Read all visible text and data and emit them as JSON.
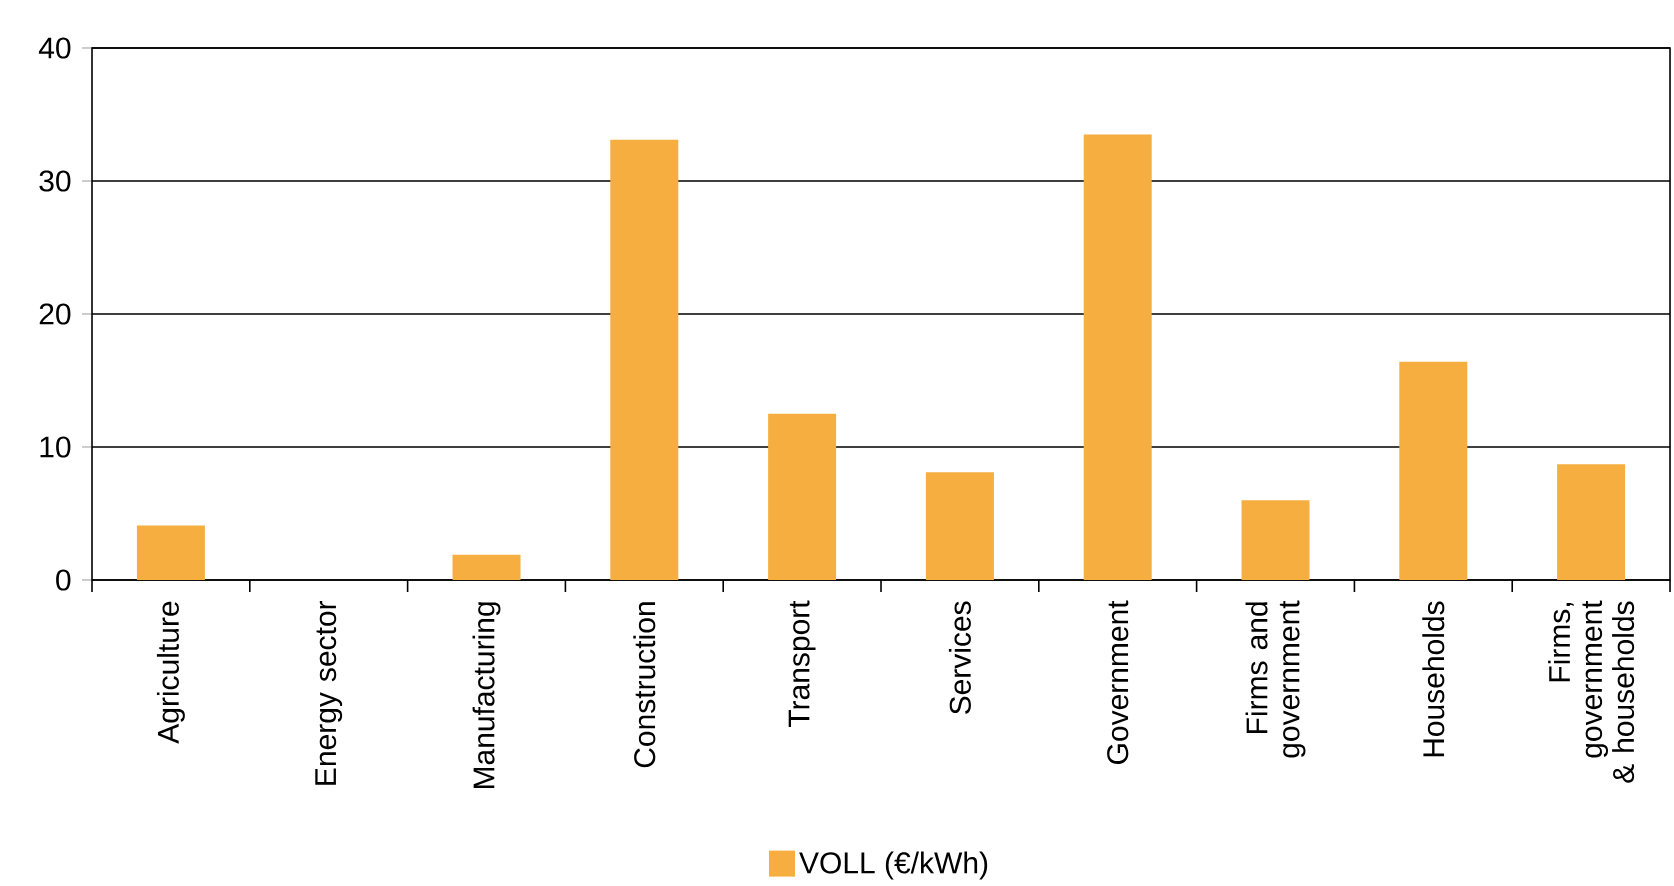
{
  "chart_data": {
    "type": "bar",
    "categories": [
      "Agriculture",
      "Energy sector",
      "Manufacturing",
      "Construction",
      "Transport",
      "Services",
      "Government",
      "Firms and government",
      "Households",
      "Firms, government & households"
    ],
    "series": [
      {
        "name": "VOLL (€/kWh)",
        "color": "#f6ae40",
        "values": [
          4.1,
          null,
          1.9,
          33.1,
          12.5,
          8.1,
          33.5,
          6.0,
          16.4,
          8.7
        ]
      }
    ],
    "ylim": [
      0,
      40
    ],
    "yticks": [
      0,
      10,
      20,
      30,
      40
    ],
    "grid": "y",
    "legend": "bottom"
  }
}
